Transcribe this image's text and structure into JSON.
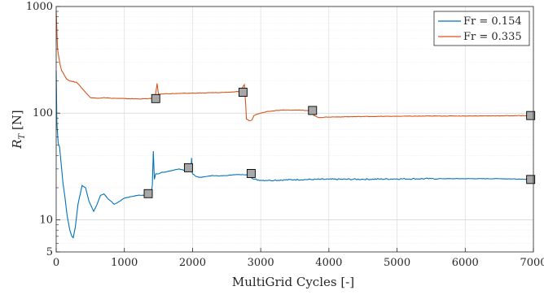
{
  "chart_data": {
    "type": "line",
    "xlabel": "MultiGrid Cycles [-]",
    "ylabel_main": "R",
    "ylabel_sub": "T",
    "ylabel_unit": " [N]",
    "xlim": [
      0,
      7000
    ],
    "ylim": [
      5,
      1000
    ],
    "yscale": "log",
    "grid": true,
    "legend_position": "top-right",
    "x_ticks": [
      0,
      1000,
      2000,
      3000,
      4000,
      5000,
      6000,
      7000
    ],
    "x_tick_labels": [
      "0",
      "1000",
      "2000",
      "3000",
      "4000",
      "5000",
      "6000",
      "7000"
    ],
    "y_ticks": [
      5,
      10,
      100,
      1000
    ],
    "y_tick_labels": [
      "5",
      "10",
      "100",
      "1000"
    ],
    "series": [
      {
        "name": "Fr = 0.154",
        "color": "#0072BD",
        "x": [
          0,
          10,
          30,
          50,
          80,
          100,
          130,
          160,
          200,
          230,
          250,
          280,
          320,
          380,
          430,
          480,
          550,
          600,
          650,
          700,
          750,
          800,
          850,
          900,
          1000,
          1100,
          1200,
          1300,
          1380,
          1400,
          1410,
          1425,
          1440,
          1460,
          1500,
          1550,
          1600,
          1700,
          1800,
          1900,
          1980,
          1985,
          1995,
          2000,
          2050,
          2100,
          2200,
          2300,
          2400,
          2500,
          2600,
          2700,
          2800,
          2840,
          2860,
          2870,
          2900,
          3000,
          3200,
          3500,
          4000,
          4500,
          5000,
          5500,
          6000,
          6500,
          6980
        ],
        "y": [
          250,
          80,
          52,
          48,
          30,
          22,
          16,
          11,
          8,
          7,
          6.8,
          8.5,
          14,
          21,
          20,
          15,
          12,
          14,
          17,
          17.5,
          16,
          15,
          14,
          14.5,
          16,
          16.5,
          17,
          17,
          17.5,
          19,
          21,
          44,
          24,
          27,
          27,
          28,
          28,
          29,
          30,
          29,
          30,
          38,
          28,
          27,
          25.5,
          25,
          25.5,
          26,
          25.8,
          26,
          26.5,
          26.5,
          26.5,
          28.5,
          26,
          24.5,
          24,
          23.5,
          23.5,
          23.8,
          24,
          24,
          24.2,
          24.3,
          24.3,
          24.3,
          24
        ]
      },
      {
        "name": "Fr = 0.335",
        "color": "#D95319",
        "x": [
          0,
          10,
          20,
          40,
          60,
          80,
          100,
          150,
          200,
          300,
          400,
          500,
          600,
          700,
          800,
          1000,
          1200,
          1400,
          1450,
          1480,
          1500,
          1600,
          1800,
          2000,
          2200,
          2400,
          2600,
          2700,
          2760,
          2780,
          2790,
          2830,
          2870,
          2900,
          2950,
          3000,
          3100,
          3300,
          3500,
          3700,
          3770,
          3780,
          3850,
          4000,
          4500,
          5000,
          5500,
          6000,
          6500,
          6980
        ],
        "y": [
          900,
          600,
          400,
          330,
          280,
          250,
          240,
          210,
          200,
          195,
          165,
          140,
          138,
          140,
          138,
          137,
          136,
          137,
          138,
          190,
          150,
          152,
          153,
          154,
          155,
          156,
          158,
          160,
          185,
          120,
          88,
          85,
          86,
          95,
          98,
          100,
          104,
          107,
          107,
          106,
          105,
          95,
          91,
          92,
          93,
          93.5,
          94,
          94.2,
          94.5,
          95
        ]
      }
    ],
    "markers": [
      {
        "series": "Fr = 0.154",
        "x": 1350,
        "y": 17.6
      },
      {
        "series": "Fr = 0.154",
        "x": 1940,
        "y": 30.8
      },
      {
        "series": "Fr = 0.154",
        "x": 2860,
        "y": 27.2
      },
      {
        "series": "Fr = 0.154",
        "x": 6960,
        "y": 23.9
      },
      {
        "series": "Fr = 0.335",
        "x": 1460,
        "y": 137
      },
      {
        "series": "Fr = 0.335",
        "x": 2740,
        "y": 157
      },
      {
        "series": "Fr = 0.335",
        "x": 3760,
        "y": 106
      },
      {
        "series": "Fr = 0.335",
        "x": 6960,
        "y": 95
      }
    ]
  }
}
